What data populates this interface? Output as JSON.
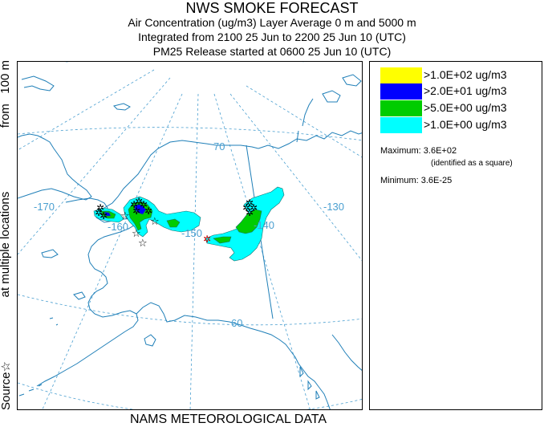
{
  "title": {
    "line1": "NWS SMOKE FORECAST",
    "line2": "Air Concentration (ug/m3) Layer Average    0 m and  5000 m",
    "line3": "Integrated from 2100 25 Jun to 2200 25 Jun 10 (UTC)",
    "line4": "PM25 Release started at 0600 25 Jun 10 (UTC)"
  },
  "side_label": {
    "part1": "Source",
    "part2": "at multiple locations",
    "part3": "from   100 m"
  },
  "bottom_label": "NAMS METEOROLOGICAL DATA",
  "map": {
    "graticule_labels": {
      "lat_70": "70",
      "lat_60": "60",
      "lon_m170": "-170",
      "lon_m160": "-160",
      "lon_m150": "-150",
      "lon_m140": "-140",
      "lon_m130": "-130"
    },
    "colors": {
      "land_line": "#1f7fb8",
      "graticule": "#4a9fd0",
      "contour_outline": "#1a6e6e"
    }
  },
  "legend": {
    "items": [
      {
        "color": "#ffff00",
        "label": ">1.0E+02 ug/m3"
      },
      {
        "color": "#0000ff",
        "label": ">2.0E+01 ug/m3"
      },
      {
        "color": "#00cc00",
        "label": ">5.0E+00 ug/m3"
      },
      {
        "color": "#00ffff",
        "label": ">1.0E+00 ug/m3"
      }
    ],
    "maximum_label": "Maximum:",
    "maximum_value": "3.6E+02",
    "maximum_note": "(identified as a square)",
    "minimum_label": "Minimum:",
    "minimum_value": "3.6E-25"
  }
}
